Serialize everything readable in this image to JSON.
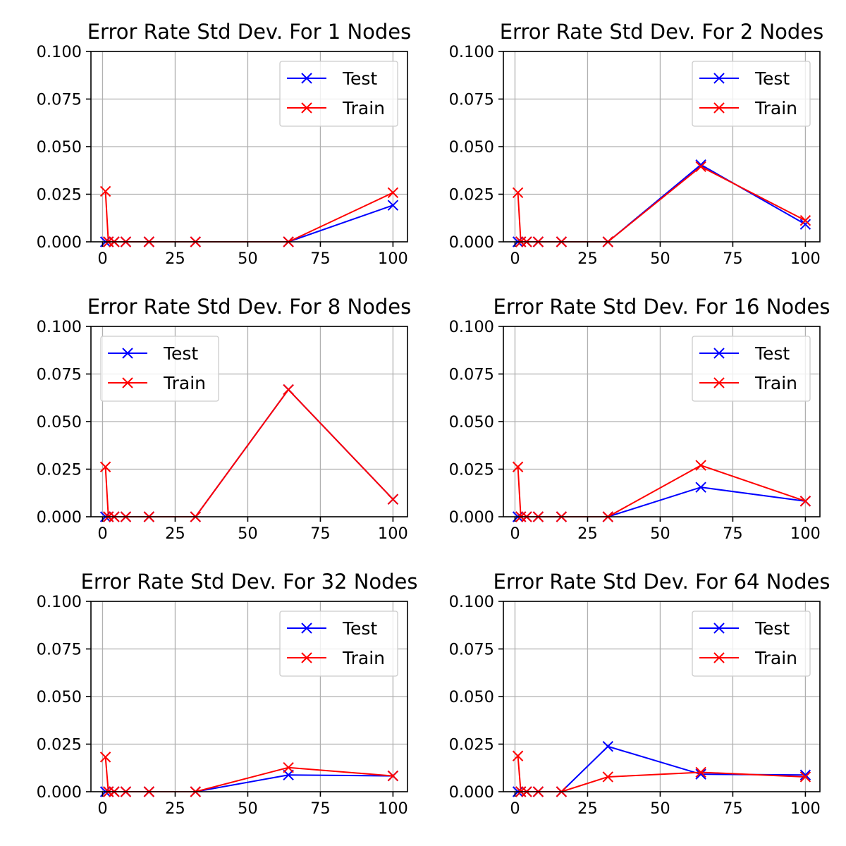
{
  "chart_data": [
    {
      "type": "line",
      "title": "Error Rate Std Dev. For 1 Nodes",
      "xlabel": "",
      "ylabel": "",
      "x": [
        1,
        2,
        4,
        8,
        16,
        32,
        64,
        100
      ],
      "xlim": [
        -4,
        105
      ],
      "ylim": [
        0,
        0.1
      ],
      "xticks": [
        0,
        25,
        50,
        75,
        100
      ],
      "yticks": [
        "0.000",
        "0.025",
        "0.050",
        "0.075",
        "0.100"
      ],
      "grid": true,
      "legend": "upper right",
      "series": [
        {
          "name": "Test",
          "color": "#0000ff",
          "values": [
            0,
            0,
            0,
            0,
            0,
            0,
            0,
            0.0192
          ]
        },
        {
          "name": "Train",
          "color": "#ff0000",
          "values": [
            0.0265,
            0,
            0,
            0,
            0,
            0,
            0,
            0.0258
          ]
        }
      ]
    },
    {
      "type": "line",
      "title": "Error Rate Std Dev. For 2 Nodes",
      "xlabel": "",
      "ylabel": "",
      "x": [
        1,
        2,
        4,
        8,
        16,
        32,
        64,
        100
      ],
      "xlim": [
        -4,
        105
      ],
      "ylim": [
        0,
        0.1
      ],
      "xticks": [
        0,
        25,
        50,
        75,
        100
      ],
      "yticks": [
        "0.000",
        "0.025",
        "0.050",
        "0.075",
        "0.100"
      ],
      "grid": true,
      "legend": "upper right",
      "series": [
        {
          "name": "Test",
          "color": "#0000ff",
          "values": [
            0,
            0,
            0,
            0,
            0,
            0,
            0.0405,
            0.0092
          ]
        },
        {
          "name": "Train",
          "color": "#ff0000",
          "values": [
            0.0258,
            0,
            0,
            0,
            0,
            0,
            0.0395,
            0.0112
          ]
        }
      ]
    },
    {
      "type": "line",
      "title": "Error Rate Std Dev. For 8 Nodes",
      "xlabel": "",
      "ylabel": "",
      "x": [
        1,
        2,
        4,
        8,
        16,
        32,
        64,
        100
      ],
      "xlim": [
        -4,
        105
      ],
      "ylim": [
        0,
        0.1
      ],
      "xticks": [
        0,
        25,
        50,
        75,
        100
      ],
      "yticks": [
        "0.000",
        "0.025",
        "0.050",
        "0.075",
        "0.100"
      ],
      "grid": true,
      "legend": "upper left",
      "series": [
        {
          "name": "Test",
          "color": "#0000ff",
          "values": [
            0,
            0,
            0,
            0,
            0,
            0,
            0.0668,
            0.0092
          ]
        },
        {
          "name": "Train",
          "color": "#ff0000",
          "values": [
            0.0262,
            0,
            0,
            0,
            0,
            0,
            0.0668,
            0.0092
          ]
        }
      ]
    },
    {
      "type": "line",
      "title": "Error Rate Std Dev. For 16 Nodes",
      "xlabel": "",
      "ylabel": "",
      "x": [
        1,
        2,
        4,
        8,
        16,
        32,
        64,
        100
      ],
      "xlim": [
        -4,
        105
      ],
      "ylim": [
        0,
        0.1
      ],
      "xticks": [
        0,
        25,
        50,
        75,
        100
      ],
      "yticks": [
        "0.000",
        "0.025",
        "0.050",
        "0.075",
        "0.100"
      ],
      "grid": true,
      "legend": "upper right",
      "series": [
        {
          "name": "Test",
          "color": "#0000ff",
          "values": [
            0,
            0,
            0,
            0,
            0,
            0,
            0.0155,
            0.0082
          ]
        },
        {
          "name": "Train",
          "color": "#ff0000",
          "values": [
            0.0262,
            0,
            0,
            0,
            0,
            0,
            0.027,
            0.0082
          ]
        }
      ]
    },
    {
      "type": "line",
      "title": "Error Rate Std Dev. For 32 Nodes",
      "xlabel": "",
      "ylabel": "",
      "x": [
        1,
        2,
        4,
        8,
        16,
        32,
        64,
        100
      ],
      "xlim": [
        -4,
        105
      ],
      "ylim": [
        0,
        0.1
      ],
      "xticks": [
        0,
        25,
        50,
        75,
        100
      ],
      "yticks": [
        "0.000",
        "0.025",
        "0.050",
        "0.075",
        "0.100"
      ],
      "grid": true,
      "legend": "upper right",
      "series": [
        {
          "name": "Test",
          "color": "#0000ff",
          "values": [
            0,
            0,
            0,
            0,
            0,
            0,
            0.0088,
            0.0083
          ]
        },
        {
          "name": "Train",
          "color": "#ff0000",
          "values": [
            0.0182,
            0,
            0,
            0,
            0,
            0,
            0.0127,
            0.0083
          ]
        }
      ]
    },
    {
      "type": "line",
      "title": "Error Rate Std Dev. For 64 Nodes",
      "xlabel": "",
      "ylabel": "",
      "x": [
        1,
        2,
        4,
        8,
        16,
        32,
        64,
        100
      ],
      "xlim": [
        -4,
        105
      ],
      "ylim": [
        0,
        0.1
      ],
      "xticks": [
        0,
        25,
        50,
        75,
        100
      ],
      "yticks": [
        "0.000",
        "0.025",
        "0.050",
        "0.075",
        "0.100"
      ],
      "grid": true,
      "legend": "upper right",
      "series": [
        {
          "name": "Test",
          "color": "#0000ff",
          "values": [
            0,
            0,
            0,
            0,
            0,
            0.0238,
            0.0092,
            0.0088
          ]
        },
        {
          "name": "Train",
          "color": "#ff0000",
          "values": [
            0.0188,
            0,
            0,
            0,
            0,
            0.0078,
            0.0102,
            0.0078
          ]
        }
      ]
    }
  ]
}
